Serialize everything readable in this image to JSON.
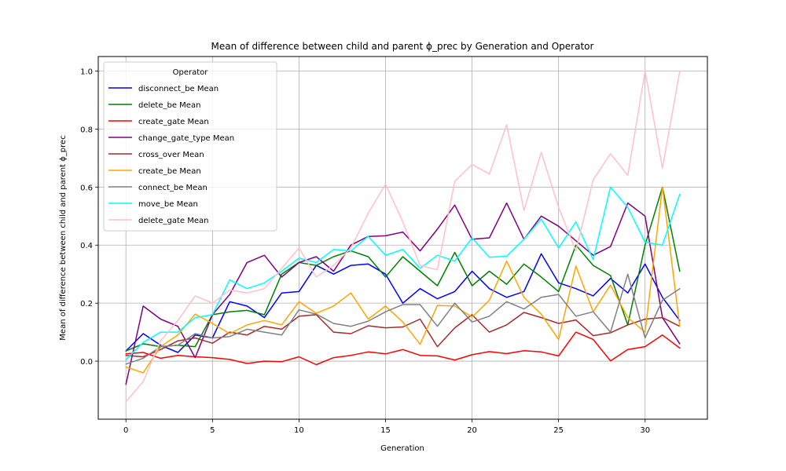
{
  "chart_data": {
    "type": "line",
    "title": "Mean of difference between child and parent ϕ_prec by Generation and Operator",
    "xlabel": "Generation",
    "ylabel": "Mean of difference between child and parent ϕ_prec",
    "xlim": [
      -1.6,
      33.6
    ],
    "ylim": [
      -0.2,
      1.05
    ],
    "xticks": [
      0,
      5,
      10,
      15,
      20,
      25,
      30
    ],
    "yticks": [
      0.0,
      0.2,
      0.4,
      0.6,
      0.8,
      1.0
    ],
    "ytick_labels": [
      "0.0",
      "0.2",
      "0.4",
      "0.6",
      "0.8",
      "1.0"
    ],
    "grid": true,
    "legend": {
      "title": "Operator",
      "placement": "top-left"
    },
    "x": [
      0,
      1,
      2,
      3,
      4,
      5,
      6,
      7,
      8,
      9,
      10,
      11,
      12,
      13,
      14,
      15,
      16,
      17,
      18,
      19,
      20,
      21,
      22,
      23,
      24,
      25,
      26,
      27,
      28,
      29,
      30,
      31,
      32
    ],
    "series": [
      {
        "name": "disconnect_be Mean",
        "color": "#0000ff",
        "values": [
          0.035,
          0.095,
          0.055,
          0.03,
          0.09,
          0.08,
          0.205,
          0.19,
          0.15,
          0.235,
          0.24,
          0.33,
          0.3,
          0.33,
          0.335,
          0.3,
          0.2,
          0.25,
          0.215,
          0.24,
          0.31,
          0.25,
          0.22,
          0.24,
          0.37,
          0.27,
          0.25,
          0.225,
          0.285,
          0.235,
          0.335,
          0.22,
          0.14
        ]
      },
      {
        "name": "delete_be Mean",
        "color": "#008000",
        "values": [
          0.035,
          0.06,
          0.05,
          0.055,
          0.05,
          0.16,
          0.17,
          0.175,
          0.16,
          0.3,
          0.34,
          0.33,
          0.36,
          0.38,
          0.36,
          0.29,
          0.36,
          0.31,
          0.26,
          0.375,
          0.26,
          0.31,
          0.265,
          0.335,
          0.29,
          0.24,
          0.4,
          0.33,
          0.295,
          0.125,
          0.4,
          0.6,
          0.31
        ]
      },
      {
        "name": "create_gate Mean",
        "color": "#ff0000",
        "values": [
          0.025,
          0.03,
          0.01,
          0.02,
          0.015,
          0.012,
          0.006,
          -0.008,
          0.0,
          -0.002,
          0.015,
          -0.012,
          0.012,
          0.02,
          0.032,
          0.025,
          0.04,
          0.02,
          0.018,
          0.004,
          0.022,
          0.033,
          0.026,
          0.036,
          0.032,
          0.018,
          0.1,
          0.075,
          0.001,
          0.04,
          0.05,
          0.09,
          0.045
        ]
      },
      {
        "name": "change_gate_type Mean",
        "color": "#800080",
        "values": [
          -0.08,
          0.19,
          0.145,
          0.12,
          0.012,
          0.16,
          0.23,
          0.34,
          0.365,
          0.29,
          0.34,
          0.36,
          0.31,
          0.4,
          0.43,
          0.432,
          0.445,
          0.38,
          0.455,
          0.538,
          0.42,
          0.425,
          0.545,
          0.42,
          0.5,
          0.465,
          0.415,
          0.365,
          0.395,
          0.545,
          0.5,
          0.15,
          0.06
        ]
      },
      {
        "name": "cross_over Mean",
        "color": "#a52a2a",
        "values": [
          0.02,
          0.015,
          0.04,
          0.07,
          0.08,
          0.062,
          0.1,
          0.09,
          0.12,
          0.11,
          0.155,
          0.16,
          0.1,
          0.095,
          0.122,
          0.115,
          0.118,
          0.145,
          0.05,
          0.115,
          0.16,
          0.1,
          0.125,
          0.168,
          0.15,
          0.13,
          0.142,
          0.088,
          0.098,
          0.125,
          0.145,
          0.15,
          0.12
        ]
      },
      {
        "name": "create_be Mean",
        "color": "#ffa500",
        "values": [
          -0.02,
          -0.04,
          0.05,
          0.09,
          0.162,
          0.13,
          0.095,
          0.125,
          0.14,
          0.125,
          0.205,
          0.165,
          0.19,
          0.235,
          0.145,
          0.19,
          0.135,
          0.058,
          0.192,
          0.19,
          0.152,
          0.21,
          0.345,
          0.22,
          0.162,
          0.075,
          0.328,
          0.17,
          0.262,
          0.15,
          0.1,
          0.6,
          0.12
        ]
      },
      {
        "name": "connect_be Mean",
        "color": "#808080",
        "values": [
          -0.01,
          0.01,
          0.05,
          0.055,
          0.095,
          0.08,
          0.085,
          0.11,
          0.1,
          0.09,
          0.177,
          0.162,
          0.13,
          0.12,
          0.138,
          0.17,
          0.195,
          0.195,
          0.12,
          0.2,
          0.135,
          0.155,
          0.205,
          0.18,
          0.22,
          0.23,
          0.155,
          0.17,
          0.1,
          0.3,
          0.08,
          0.21,
          0.25
        ]
      },
      {
        "name": "move_be Mean",
        "color": "#00ffff",
        "values": [
          0.005,
          0.065,
          0.1,
          0.1,
          0.15,
          0.16,
          0.28,
          0.25,
          0.27,
          0.31,
          0.355,
          0.34,
          0.385,
          0.38,
          0.43,
          0.365,
          0.385,
          0.32,
          0.365,
          0.345,
          0.425,
          0.358,
          0.362,
          0.42,
          0.49,
          0.39,
          0.48,
          0.35,
          0.6,
          0.53,
          0.41,
          0.4,
          0.575
        ]
      },
      {
        "name": "delete_gate Mean",
        "color": "#ffc0cb",
        "values": [
          -0.14,
          -0.07,
          0.07,
          0.14,
          0.225,
          0.2,
          0.245,
          0.235,
          0.25,
          0.32,
          0.39,
          0.29,
          0.33,
          0.39,
          0.51,
          0.61,
          0.48,
          0.33,
          0.315,
          0.62,
          0.678,
          0.645,
          0.815,
          0.52,
          0.72,
          0.53,
          0.38,
          0.625,
          0.715,
          0.64,
          1.0,
          0.665,
          1.0
        ]
      }
    ]
  }
}
